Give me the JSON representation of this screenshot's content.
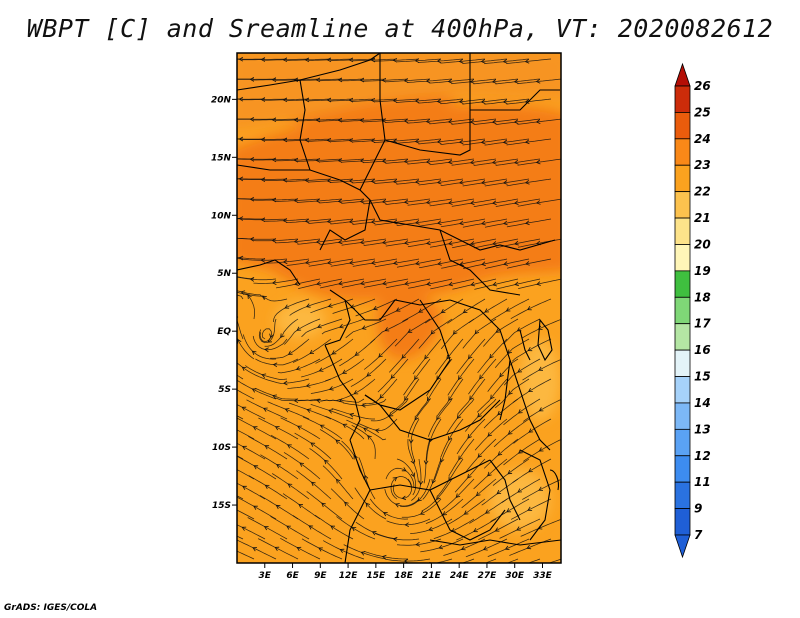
{
  "chart_data": {
    "type": "heatmap",
    "title": "WBPT [C] and Sreamline at 400hPa, VT: 2020082612",
    "variable": "WBPT",
    "units": "C",
    "overlay": "streamlines",
    "lon_range": [
      0,
      35
    ],
    "lat_range": [
      -20,
      24
    ],
    "x_ticks": [
      "3E",
      "6E",
      "9E",
      "12E",
      "15E",
      "18E",
      "21E",
      "24E",
      "27E",
      "30E",
      "33E"
    ],
    "x_tick_values": [
      3,
      6,
      9,
      12,
      15,
      18,
      21,
      24,
      27,
      30,
      33
    ],
    "y_ticks": [
      "20N",
      "15N",
      "10N",
      "5N",
      "EQ",
      "5S",
      "10S",
      "15S"
    ],
    "y_tick_values": [
      20,
      15,
      10,
      5,
      0,
      -5,
      -10,
      -15
    ],
    "colorbar": {
      "labels": [
        "7",
        "9",
        "11",
        "12",
        "13",
        "14",
        "15",
        "16",
        "17",
        "18",
        "19",
        "20",
        "21",
        "22",
        "23",
        "24",
        "25",
        "26"
      ],
      "colors": [
        "#1f5fd6",
        "#2a72e0",
        "#3d8cf0",
        "#5aa2f5",
        "#7cb8f7",
        "#a6d2fa",
        "#e3f3f8",
        "#b4e6a4",
        "#7fd777",
        "#3fbf3f",
        "#fff6b8",
        "#fde38a",
        "#fcc24e",
        "#fba21f",
        "#f98818",
        "#ea5c0c",
        "#cc2c0a",
        "#b40e06"
      ]
    },
    "vortices": [
      {
        "lon": 18,
        "lat": -14,
        "type": "cyclonic"
      },
      {
        "lon": 3,
        "lat": -1,
        "type": "cyclonic"
      }
    ]
  },
  "credit": "GrADS: IGES/COLA"
}
